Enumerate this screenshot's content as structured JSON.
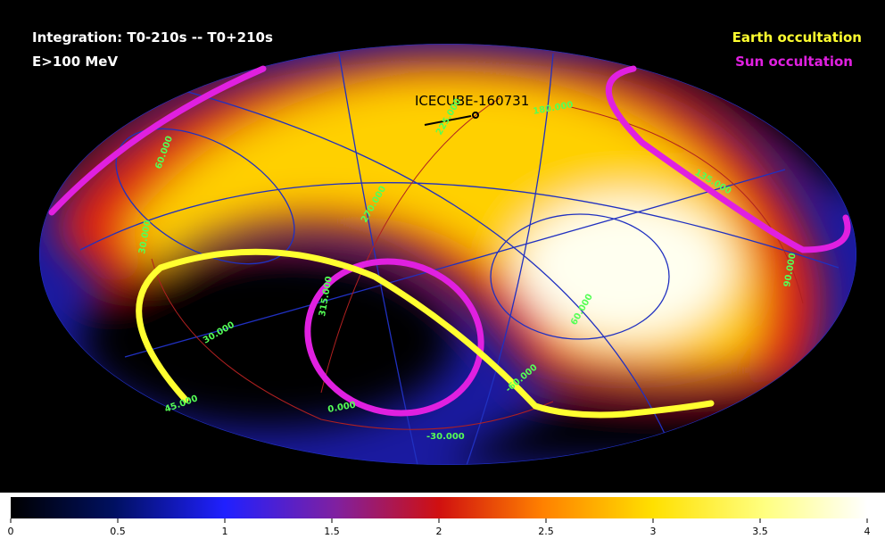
{
  "header": {
    "integration": "Integration: T0-210s -- T0+210s",
    "energy": "E>100 MeV"
  },
  "legend": {
    "earth": "Earth occultation",
    "sun": "Sun occultation"
  },
  "source": {
    "label": "ICECUBE-160731"
  },
  "grid_labels": [
    "225.000",
    "180.000",
    "135.000",
    "270.000",
    "90.000",
    "60.000",
    "30.000",
    "315.000",
    "30.000",
    "60.000",
    "45.000",
    "0.000",
    "-30.000",
    "-60.000"
  ],
  "colorbar": {
    "lim": [
      0,
      4
    ],
    "ticks": [
      0,
      0.5,
      1,
      1.5,
      2,
      2.5,
      3,
      3.5,
      4
    ]
  }
}
